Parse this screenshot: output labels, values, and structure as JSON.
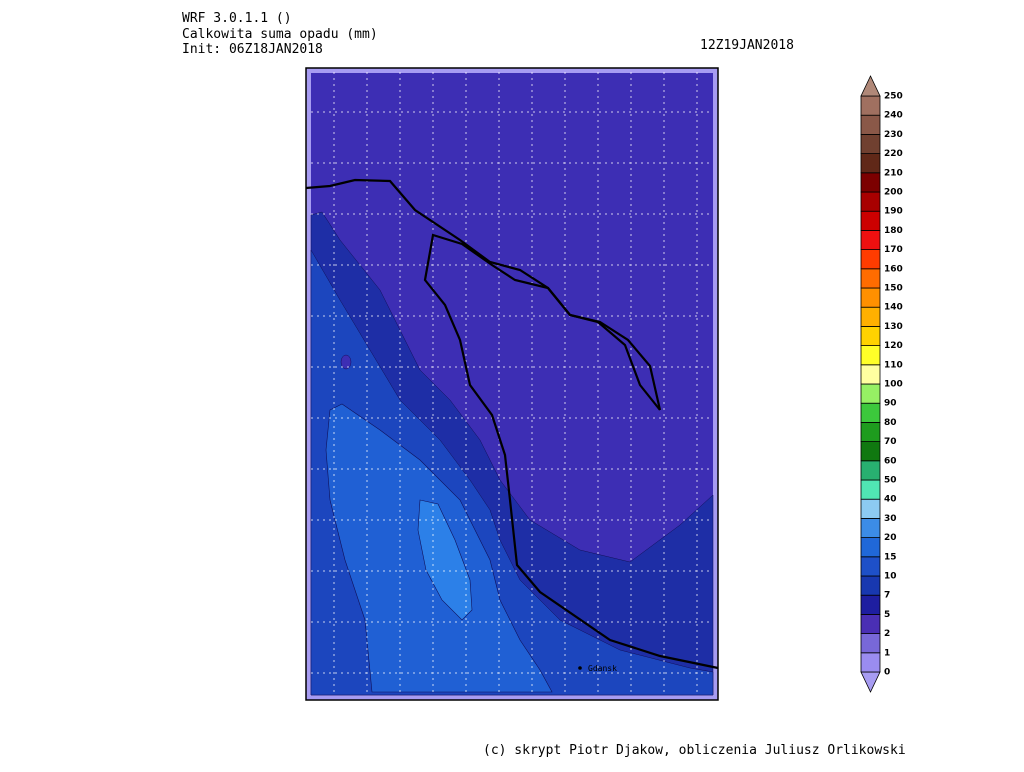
{
  "header": {
    "model": "WRF 3.0.1.1 ()",
    "title": "Calkowita suma opadu (mm)",
    "init": "Init: 06Z18JAN2018",
    "valid": "12Z19JAN2018"
  },
  "map": {
    "city": "Gdansk"
  },
  "colorbar": {
    "labels": [
      0,
      1,
      2,
      5,
      7,
      10,
      15,
      20,
      30,
      40,
      50,
      60,
      70,
      80,
      90,
      100,
      110,
      120,
      130,
      140,
      150,
      160,
      170,
      180,
      190,
      200,
      210,
      220,
      230,
      240,
      250
    ],
    "colors": [
      "#a79cf2",
      "#9a8cf0",
      "#7868d8",
      "#4a2fb4",
      "#1e1ea0",
      "#1838b0",
      "#1e50c8",
      "#2068d8",
      "#3c8ce6",
      "#8ccaf2",
      "#50e6b4",
      "#28b070",
      "#107810",
      "#1e9c1e",
      "#3cc83c",
      "#96f064",
      "#ffffa0",
      "#ffff28",
      "#ffd200",
      "#ffb000",
      "#ff9000",
      "#ff6c00",
      "#ff3c00",
      "#ee1010",
      "#cc0000",
      "#a80000",
      "#7c0000",
      "#602818",
      "#704030",
      "#8a5848",
      "#a07060",
      "#b08878"
    ]
  },
  "footer": "(c) skrypt Piotr Djakow, obliczenia Juliusz Orlikowski"
}
